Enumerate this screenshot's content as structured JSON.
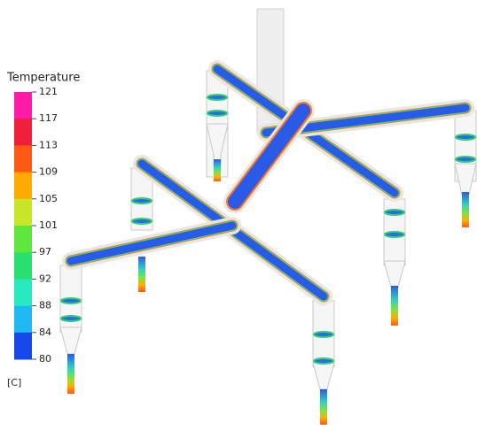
{
  "legend": {
    "title": "Temperature",
    "ticks": [
      121,
      117,
      113,
      109,
      105,
      101,
      97,
      92,
      88,
      84,
      80
    ],
    "colors": [
      "#ff1aa8",
      "#f0203c",
      "#ff5a14",
      "#ffa800",
      "#c8e628",
      "#5ee63c",
      "#28e070",
      "#28e8c0",
      "#20b8f0",
      "#1448e8"
    ],
    "unit": "[C]"
  }
}
